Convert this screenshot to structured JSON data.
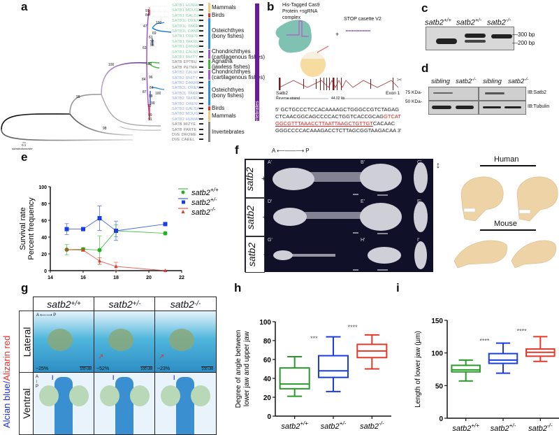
{
  "panels": {
    "a": {
      "label": "a",
      "taxa": [
        {
          "name": "SATB1 HUMAN",
          "color": "#7fd0a8"
        },
        {
          "name": "SATB1 MOUSE",
          "color": "#7fd0a8"
        },
        {
          "name": "SATB1 GALGA",
          "color": "#7fd0a8"
        },
        {
          "name": "SATB1L ORENI",
          "color": "#7fd0a8"
        },
        {
          "name": "SATB1L TAKRU",
          "color": "#7fd0a8"
        },
        {
          "name": "SATB1L DANRE",
          "color": "#7fd0a8"
        },
        {
          "name": "SATB1 ORENI",
          "color": "#7fd0a8"
        },
        {
          "name": "SATB1 TAKRU",
          "color": "#7fd0a8"
        },
        {
          "name": "SATB1 DANRE",
          "color": "#7fd0a8"
        },
        {
          "name": "SATB1 CALMI",
          "color": "#7fd0a8"
        },
        {
          "name": "SATB1 RHITY",
          "color": "#7fd0a8"
        },
        {
          "name": "SATB EPTBU",
          "color": "#777777"
        },
        {
          "name": "SATB PETMA",
          "color": "#777777"
        },
        {
          "name": "SATB2 CALMI",
          "color": "#8fa8e0"
        },
        {
          "name": "SATB2 RHITY",
          "color": "#8fa8e0"
        },
        {
          "name": "SATB2 DANRE",
          "color": "#8fa8e0"
        },
        {
          "name": "SATB2L ORENI",
          "color": "#8fa8e0"
        },
        {
          "name": "SATB2L TAKRU",
          "color": "#8fa8e0"
        },
        {
          "name": "SATB2 TAKRU",
          "color": "#8fa8e0"
        },
        {
          "name": "SATB2 ORENI",
          "color": "#8fa8e0"
        },
        {
          "name": "SATB2 GALGA",
          "color": "#8fa8e0"
        },
        {
          "name": "SATB2 MOUSE",
          "color": "#8fa8e0"
        },
        {
          "name": "SATB2 HUMAN",
          "color": "#8fa8e0"
        },
        {
          "name": "SATB MIZYE",
          "color": "#777777"
        },
        {
          "name": "SATB PARTE",
          "color": "#777777"
        },
        {
          "name": "DVE DROME",
          "color": "#777777"
        },
        {
          "name": "DVE CAEEL",
          "color": "#777777"
        }
      ],
      "groups": [
        {
          "label": "Mammals",
          "color": "#f2c77a"
        },
        {
          "label": "Birds",
          "color": "#e8302a"
        },
        {
          "label": "Osteichthyes\n(bony fishes)",
          "color": "#2d8fe0"
        },
        {
          "label": "Chondrichthyes\n(cartilagenous fishes)",
          "color": "#9a5ad0"
        },
        {
          "label": "Agnatha\n(jawless fishes)",
          "color": "#3cb83c"
        },
        {
          "label": "Chondrichthyes\n(cartilagenous fishes)",
          "color": "#9a5ad0"
        },
        {
          "label": "Osteichthyes\n(bony fishes)",
          "color": "#2d8fe0"
        },
        {
          "label": "Birds",
          "color": "#e8302a"
        },
        {
          "label": "Mammals",
          "color": "#f2c77a"
        },
        {
          "label": "Invertebrates",
          "color": "#888888"
        }
      ],
      "vertebrates_label": "Vertebrates",
      "bootstrap": [
        "91",
        "84",
        "100",
        "47",
        "69",
        "61",
        "63",
        "100",
        "84",
        "87",
        "84",
        "100",
        "96",
        "72",
        "99",
        "91",
        "99",
        "98",
        "100",
        "100",
        "96",
        "98",
        "99"
      ],
      "scale": {
        "value": "0.1",
        "unit": "substitutions/site"
      }
    },
    "b": {
      "label": "b",
      "complex_label": "His-Tagged Cas9\nProtein +sgRNA\ncomplex",
      "plus": "+",
      "cassette_label": "STOP casette V2",
      "gene": "Satb2",
      "strand": "Reverse strand",
      "length": "44.02 kb",
      "exon": "Exon 1",
      "sequence": {
        "line1": "5' GCTGCCCTCCACAAAAGCTGGGCCGTCTAGAG",
        "line2_black": "CTCAACGGCAGCCCCACTGGTCACCGCAG",
        "line2_red": "GTCAT",
        "line3_red": "GGCGTTTAAACCTTAATTAAGCTGTTGT",
        "line3_black": "CACAAC",
        "line4": "GGGCCCCACAAAGACCTCTTAGCGGTAAGACAA 3'"
      }
    },
    "c": {
      "label": "c",
      "lanes": [
        "satb2",
        "satb2",
        "satb2"
      ],
      "lane_sup": [
        "+/+",
        "+/-",
        "-/-"
      ],
      "markers": [
        "300 bp",
        "200 bp"
      ]
    },
    "d": {
      "label": "d",
      "lanes": [
        "sibling",
        "satb2",
        "sibling",
        "satb2"
      ],
      "lane_sup": [
        "",
        "-/-",
        "",
        "-/-"
      ],
      "markers": [
        "75 KDa-",
        "50 KDa-"
      ],
      "blots": [
        "IB:Satb2",
        "IB:Tubulin"
      ]
    },
    "e": {
      "label": "e"
    },
    "f": {
      "label": "f",
      "axis": {
        "a": "A",
        "p": "P"
      },
      "rows": [
        {
          "gene": "satb2",
          "sup": "+/+"
        },
        {
          "gene": "satb2",
          "sup": "+/-"
        },
        {
          "gene": "satb2",
          "sup": "-/-"
        }
      ],
      "subpanels": [
        "A'",
        "B'",
        "C'",
        "D'",
        "E'",
        "F'",
        "G'",
        "H'",
        "I'"
      ],
      "human_label": "Human",
      "mouse_label": "Mouse"
    },
    "g": {
      "label": "g",
      "columns": [
        {
          "gene": "satb2",
          "sup": "+/+"
        },
        {
          "gene": "satb2",
          "sup": "+/-"
        },
        {
          "gene": "satb2",
          "sup": "-/-"
        }
      ],
      "rows": [
        "Lateral",
        "Ventral"
      ],
      "side_label_blue": "Alcian blue/",
      "side_label_red": "Alizarin red",
      "percents": [
        "~25%",
        "~52%",
        "~23%"
      ],
      "scalebar": "100 uM",
      "axis_lat": {
        "a": "A",
        "p": "P"
      },
      "axis_ven": {
        "a": "A",
        "p": "P"
      }
    },
    "h": {
      "label": "h"
    },
    "i": {
      "label": "i"
    }
  },
  "chart_data": [
    {
      "id": "e",
      "type": "line",
      "title": "",
      "xlabel": "Days post fertilization",
      "ylabel": [
        "Survival rate",
        "Percent frequency"
      ],
      "xlim": [
        14,
        22
      ],
      "ylim": [
        0,
        100
      ],
      "xticks": [
        14,
        16,
        18,
        20,
        22
      ],
      "yticks": [
        0,
        20,
        40,
        60,
        80,
        100
      ],
      "legend_position": "top-right",
      "x": [
        15,
        16,
        17,
        18,
        21
      ],
      "series": [
        {
          "name": "satb2",
          "sup": "+/+",
          "color": "#22b022",
          "marker": "circle",
          "values": [
            25,
            25.5,
            24.5,
            47.5,
            44.5
          ],
          "err": [
            6,
            2,
            17,
            7,
            2
          ]
        },
        {
          "name": "satb2",
          "sup": "+/-",
          "color": "#1a3ee6",
          "marker": "square",
          "values": [
            49.5,
            49.5,
            62.5,
            47.5,
            55.5
          ],
          "err": [
            6.5,
            1.5,
            14.5,
            11.5,
            1.5
          ]
        },
        {
          "name": "satb2",
          "sup": "-/-",
          "color": "#e23a2a",
          "marker": "triangle",
          "values": [
            25,
            24.5,
            11.5,
            5,
            0
          ],
          "err": [
            0,
            1.5,
            4,
            5,
            0
          ]
        }
      ]
    },
    {
      "id": "h",
      "type": "box",
      "ylabel": [
        "Degree of angle between",
        "lower jaw and upper jaw"
      ],
      "ylim": [
        0,
        100
      ],
      "yticks": [
        0,
        20,
        40,
        60,
        80,
        100
      ],
      "categories": [
        {
          "gene": "satb2",
          "sup": "+/+"
        },
        {
          "gene": "satb2",
          "sup": "+/-"
        },
        {
          "gene": "satb2",
          "sup": "-/-"
        }
      ],
      "boxes": [
        {
          "color": "#2a9a2a",
          "min": 21,
          "q1": 29,
          "median": 34,
          "q3": 51,
          "max": 63
        },
        {
          "color": "#1a3ee6",
          "min": 26,
          "q1": 41,
          "median": 48,
          "q3": 64,
          "max": 84
        },
        {
          "color": "#e23a2a",
          "min": 50,
          "q1": 62,
          "median": 69,
          "q3": 76,
          "max": 86
        }
      ],
      "annotations": [
        {
          "after": 1,
          "text": "***",
          "y": 80
        },
        {
          "after": 2,
          "text": "****",
          "y": 92
        }
      ]
    },
    {
      "id": "i",
      "type": "box",
      "ylabel": [
        "Length of lower jaw (µm)"
      ],
      "ylim": [
        0,
        150
      ],
      "yticks": [
        0,
        50,
        100,
        150
      ],
      "categories": [
        {
          "gene": "satb2",
          "sup": "+/+"
        },
        {
          "gene": "satb2",
          "sup": "+/-"
        },
        {
          "gene": "satb2",
          "sup": "-/-"
        }
      ],
      "boxes": [
        {
          "color": "#2a9a2a",
          "min": 57,
          "q1": 71,
          "median": 74,
          "q3": 81,
          "max": 89
        },
        {
          "color": "#1a3ee6",
          "min": 69,
          "q1": 84,
          "median": 89,
          "q3": 99,
          "max": 115
        },
        {
          "color": "#e23a2a",
          "min": 87,
          "q1": 95,
          "median": 101,
          "q3": 106,
          "max": 125
        }
      ],
      "annotations": [
        {
          "after": 1,
          "text": "****",
          "y": 115
        },
        {
          "after": 2,
          "text": "****",
          "y": 130
        }
      ]
    }
  ]
}
